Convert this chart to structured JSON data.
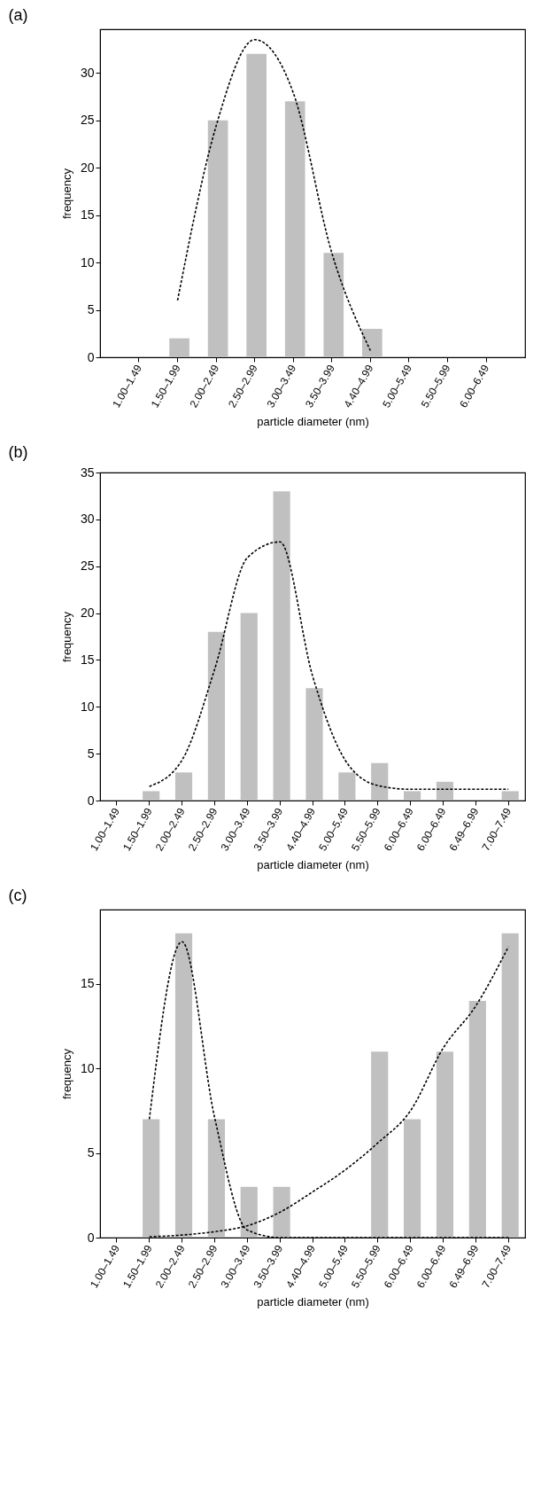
{
  "chart_data": [
    {
      "type": "bar",
      "title": "(a)",
      "xlabel": "particle diameter (nm)",
      "ylabel": "frequency",
      "categories": [
        "1.00–1.49",
        "1.50–1.99",
        "2.00–2.49",
        "2.50–2.99",
        "3.00–3.49",
        "3.50–3.99",
        "4.40–4.99",
        "5.00–5.49",
        "5.50–5.99",
        "6.00–6.49"
      ],
      "ylim": [
        0,
        34.6
      ],
      "yticks": [
        0,
        5,
        10,
        15,
        20,
        25,
        30
      ],
      "grid": false,
      "series": [
        {
          "color": "#c0c0c0",
          "values": [
            0,
            2,
            25,
            32,
            27,
            11,
            3,
            0,
            0,
            0
          ]
        },
        {
          "type": "line",
          "color": "#000000",
          "line_style": "dashed",
          "marker": "none",
          "values": [
            null,
            6,
            24.4,
            33.5,
            27.9,
            11,
            0.7,
            null,
            null,
            null
          ]
        }
      ]
    },
    {
      "type": "bar",
      "title": "(b)",
      "xlabel": "particle diameter (nm)",
      "ylabel": "frequency",
      "categories": [
        "1.00–1.49",
        "1.50–1.99",
        "2.00–2.49",
        "2.50–2.99",
        "3.00–3.49",
        "3.50–3.99",
        "4.40–4.99",
        "5.00–5.49",
        "5.50–5.99",
        "6.00–6.49",
        "6.00–6.49",
        "6.49–6.99",
        "7.00–7.49"
      ],
      "ylim": [
        0,
        35
      ],
      "yticks": [
        0,
        5,
        10,
        15,
        20,
        25,
        30,
        35
      ],
      "grid": false,
      "series": [
        {
          "color": "#c0c0c0",
          "values": [
            0,
            1,
            3,
            18,
            20,
            33,
            12,
            3,
            4,
            1,
            2,
            0,
            1
          ]
        },
        {
          "type": "line",
          "color": "#000000",
          "line_style": "dashed",
          "marker": "none",
          "values": [
            null,
            1.5,
            4.3,
            14,
            25.9,
            27.6,
            13.3,
            4.3,
            1.6,
            1.2,
            1.2,
            1.2,
            1.2
          ]
        }
      ]
    },
    {
      "type": "bar",
      "title": "(c)",
      "xlabel": "particle diameter (nm)",
      "ylabel": "frequency",
      "categories": [
        "1.00–1.49",
        "1.50–1.99",
        "2.00–2.49",
        "2.50–2.99",
        "3.00–3.49",
        "3.50–3.99",
        "4.40–4.99",
        "5.00–5.49",
        "5.50–5.99",
        "6.00–6.49",
        "6.00–6.49",
        "6.49–6.99",
        "7.00–7.49"
      ],
      "ylim": [
        0,
        19.4
      ],
      "yticks": [
        0,
        5,
        10,
        15
      ],
      "grid": false,
      "series": [
        {
          "color": "#c0c0c0",
          "values": [
            0,
            7,
            18,
            7,
            3,
            3,
            0,
            0,
            11,
            7,
            11,
            14,
            18
          ]
        },
        {
          "type": "line",
          "color": "#000000",
          "line_style": "dashed",
          "marker": "none",
          "values": [
            null,
            7,
            17.5,
            7.1,
            0.45,
            0,
            0,
            0,
            0,
            0,
            0,
            0,
            0
          ]
        },
        {
          "type": "line",
          "color": "#000000",
          "line_style": "dashed",
          "marker": "none",
          "values": [
            null,
            0.05,
            0.15,
            0.35,
            0.7,
            1.5,
            2.7,
            4,
            5.6,
            7.5,
            11.2,
            13.7,
            17.2
          ]
        }
      ]
    }
  ]
}
